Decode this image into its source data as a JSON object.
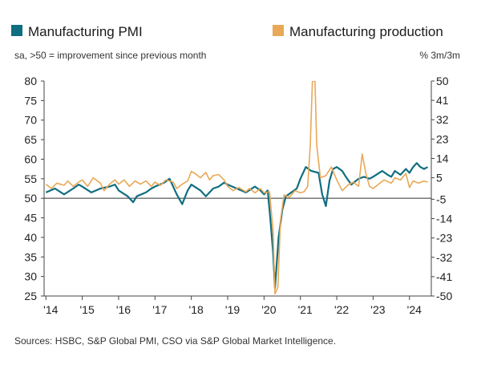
{
  "chart_data": {
    "type": "line",
    "legend": [
      {
        "label": "Manufacturing PMI",
        "color": "#0f6e80"
      },
      {
        "label": "Manufacturing production",
        "color": "#e8a857"
      }
    ],
    "left_subtitle": "sa, >50 = improvement since previous month",
    "right_subtitle": "% 3m/3m",
    "x_tick_labels": [
      "'14",
      "'15",
      "'16",
      "'17",
      "'18",
      "'19",
      "'20",
      "'21",
      "'22",
      "'23",
      "'24"
    ],
    "x_tick_years": [
      2014,
      2015,
      2016,
      2017,
      2018,
      2019,
      2020,
      2021,
      2022,
      2023,
      2024
    ],
    "xlim": [
      2013.95,
      2024.6
    ],
    "left_axis": {
      "ylim": [
        25,
        80
      ],
      "ticks": [
        25,
        30,
        35,
        40,
        45,
        50,
        55,
        60,
        65,
        70,
        75,
        80
      ]
    },
    "right_axis": {
      "ylim": [
        -50,
        50
      ],
      "ticks": [
        -50,
        -41,
        -32,
        -23,
        -14,
        -5,
        5,
        14,
        23,
        32,
        41,
        50
      ]
    },
    "reference_line": {
      "left_value": 50,
      "right_value": 0
    },
    "grid": false,
    "series": [
      {
        "name": "Manufacturing PMI",
        "axis": "left",
        "color": "#0f6e80",
        "points": [
          [
            2014.0,
            51.5
          ],
          [
            2014.25,
            52.5
          ],
          [
            2014.5,
            51.0
          ],
          [
            2014.75,
            52.5
          ],
          [
            2014.9,
            53.5
          ],
          [
            2015.0,
            53.0
          ],
          [
            2015.25,
            51.5
          ],
          [
            2015.5,
            52.5
          ],
          [
            2015.75,
            53.0
          ],
          [
            2015.9,
            53.5
          ],
          [
            2016.0,
            52.0
          ],
          [
            2016.25,
            50.5
          ],
          [
            2016.4,
            49.0
          ],
          [
            2016.5,
            50.5
          ],
          [
            2016.75,
            51.5
          ],
          [
            2016.9,
            52.5
          ],
          [
            2017.0,
            53.0
          ],
          [
            2017.25,
            54.0
          ],
          [
            2017.4,
            55.0
          ],
          [
            2017.5,
            53.0
          ],
          [
            2017.6,
            51.0
          ],
          [
            2017.75,
            48.5
          ],
          [
            2017.9,
            52.0
          ],
          [
            2018.0,
            53.5
          ],
          [
            2018.25,
            52.0
          ],
          [
            2018.4,
            50.5
          ],
          [
            2018.6,
            52.5
          ],
          [
            2018.75,
            53.0
          ],
          [
            2018.9,
            54.0
          ],
          [
            2019.0,
            53.5
          ],
          [
            2019.25,
            52.5
          ],
          [
            2019.5,
            51.5
          ],
          [
            2019.75,
            53.0
          ],
          [
            2019.9,
            52.0
          ],
          [
            2020.0,
            51.0
          ],
          [
            2020.1,
            52.0
          ],
          [
            2020.17,
            45.0
          ],
          [
            2020.25,
            36.0
          ],
          [
            2020.3,
            27.0
          ],
          [
            2020.4,
            40.0
          ],
          [
            2020.5,
            47.0
          ],
          [
            2020.6,
            50.5
          ],
          [
            2020.75,
            51.5
          ],
          [
            2020.9,
            52.5
          ],
          [
            2021.0,
            55.0
          ],
          [
            2021.15,
            58.0
          ],
          [
            2021.3,
            57.0
          ],
          [
            2021.5,
            56.5
          ],
          [
            2021.6,
            51.0
          ],
          [
            2021.7,
            48.0
          ],
          [
            2021.8,
            54.5
          ],
          [
            2021.9,
            57.5
          ],
          [
            2022.0,
            58.0
          ],
          [
            2022.15,
            57.0
          ],
          [
            2022.25,
            55.5
          ],
          [
            2022.4,
            53.5
          ],
          [
            2022.6,
            55.0
          ],
          [
            2022.75,
            55.5
          ],
          [
            2022.9,
            55.0
          ],
          [
            2023.0,
            55.5
          ],
          [
            2023.25,
            57.0
          ],
          [
            2023.4,
            56.0
          ],
          [
            2023.5,
            55.5
          ],
          [
            2023.6,
            57.0
          ],
          [
            2023.75,
            56.0
          ],
          [
            2023.9,
            57.5
          ],
          [
            2024.0,
            56.5
          ],
          [
            2024.1,
            58.0
          ],
          [
            2024.2,
            59.0
          ],
          [
            2024.3,
            58.0
          ],
          [
            2024.4,
            57.5
          ],
          [
            2024.5,
            58.0
          ]
        ]
      },
      {
        "name": "Manufacturing production",
        "axis": "right",
        "color": "#e8a857",
        "points": [
          [
            2014.0,
            2.0
          ],
          [
            2014.15,
            0.0
          ],
          [
            2014.3,
            2.5
          ],
          [
            2014.5,
            1.5
          ],
          [
            2014.6,
            3.5
          ],
          [
            2014.75,
            1.0
          ],
          [
            2014.9,
            3.0
          ],
          [
            2015.0,
            4.0
          ],
          [
            2015.15,
            1.0
          ],
          [
            2015.3,
            5.0
          ],
          [
            2015.5,
            2.5
          ],
          [
            2015.6,
            -1.0
          ],
          [
            2015.75,
            2.0
          ],
          [
            2015.9,
            4.0
          ],
          [
            2016.0,
            2.0
          ],
          [
            2016.15,
            4.0
          ],
          [
            2016.3,
            1.0
          ],
          [
            2016.45,
            3.5
          ],
          [
            2016.6,
            2.0
          ],
          [
            2016.75,
            3.5
          ],
          [
            2016.9,
            1.0
          ],
          [
            2017.0,
            3.0
          ],
          [
            2017.15,
            1.5
          ],
          [
            2017.3,
            4.0
          ],
          [
            2017.5,
            3.0
          ],
          [
            2017.6,
            0.0
          ],
          [
            2017.75,
            2.0
          ],
          [
            2017.9,
            3.5
          ],
          [
            2018.0,
            8.0
          ],
          [
            2018.1,
            7.0
          ],
          [
            2018.25,
            5.0
          ],
          [
            2018.4,
            7.5
          ],
          [
            2018.5,
            4.0
          ],
          [
            2018.6,
            6.0
          ],
          [
            2018.75,
            6.5
          ],
          [
            2018.9,
            4.0
          ],
          [
            2019.0,
            1.0
          ],
          [
            2019.15,
            -1.0
          ],
          [
            2019.3,
            0.5
          ],
          [
            2019.5,
            -1.5
          ],
          [
            2019.6,
            0.0
          ],
          [
            2019.75,
            -2.0
          ],
          [
            2019.9,
            0.0
          ],
          [
            2020.0,
            -2.0
          ],
          [
            2020.15,
            -1.5
          ],
          [
            2020.25,
            -20.0
          ],
          [
            2020.3,
            -49.0
          ],
          [
            2020.38,
            -46.0
          ],
          [
            2020.45,
            -15.0
          ],
          [
            2020.55,
            -3.0
          ],
          [
            2020.7,
            -4.0
          ],
          [
            2020.85,
            -1.0
          ],
          [
            2021.0,
            -2.0
          ],
          [
            2021.1,
            -1.5
          ],
          [
            2021.2,
            1.0
          ],
          [
            2021.27,
            20.0
          ],
          [
            2021.33,
            50.0
          ],
          [
            2021.4,
            50.0
          ],
          [
            2021.45,
            20.0
          ],
          [
            2021.55,
            5.0
          ],
          [
            2021.7,
            6.0
          ],
          [
            2021.85,
            10.0
          ],
          [
            2022.0,
            4.0
          ],
          [
            2022.15,
            -1.0
          ],
          [
            2022.3,
            1.5
          ],
          [
            2022.45,
            3.0
          ],
          [
            2022.6,
            1.0
          ],
          [
            2022.7,
            16.0
          ],
          [
            2022.8,
            7.0
          ],
          [
            2022.9,
            1.0
          ],
          [
            2023.0,
            0.0
          ],
          [
            2023.15,
            2.0
          ],
          [
            2023.3,
            4.0
          ],
          [
            2023.5,
            2.5
          ],
          [
            2023.6,
            5.0
          ],
          [
            2023.75,
            4.0
          ],
          [
            2023.9,
            7.0
          ],
          [
            2024.0,
            0.5
          ],
          [
            2024.1,
            3.5
          ],
          [
            2024.25,
            2.5
          ],
          [
            2024.4,
            3.5
          ],
          [
            2024.5,
            3.0
          ]
        ]
      }
    ],
    "source": "Sources: HSBC, S&P Global PMI, CSO via S&P Global Market Intelligence."
  }
}
